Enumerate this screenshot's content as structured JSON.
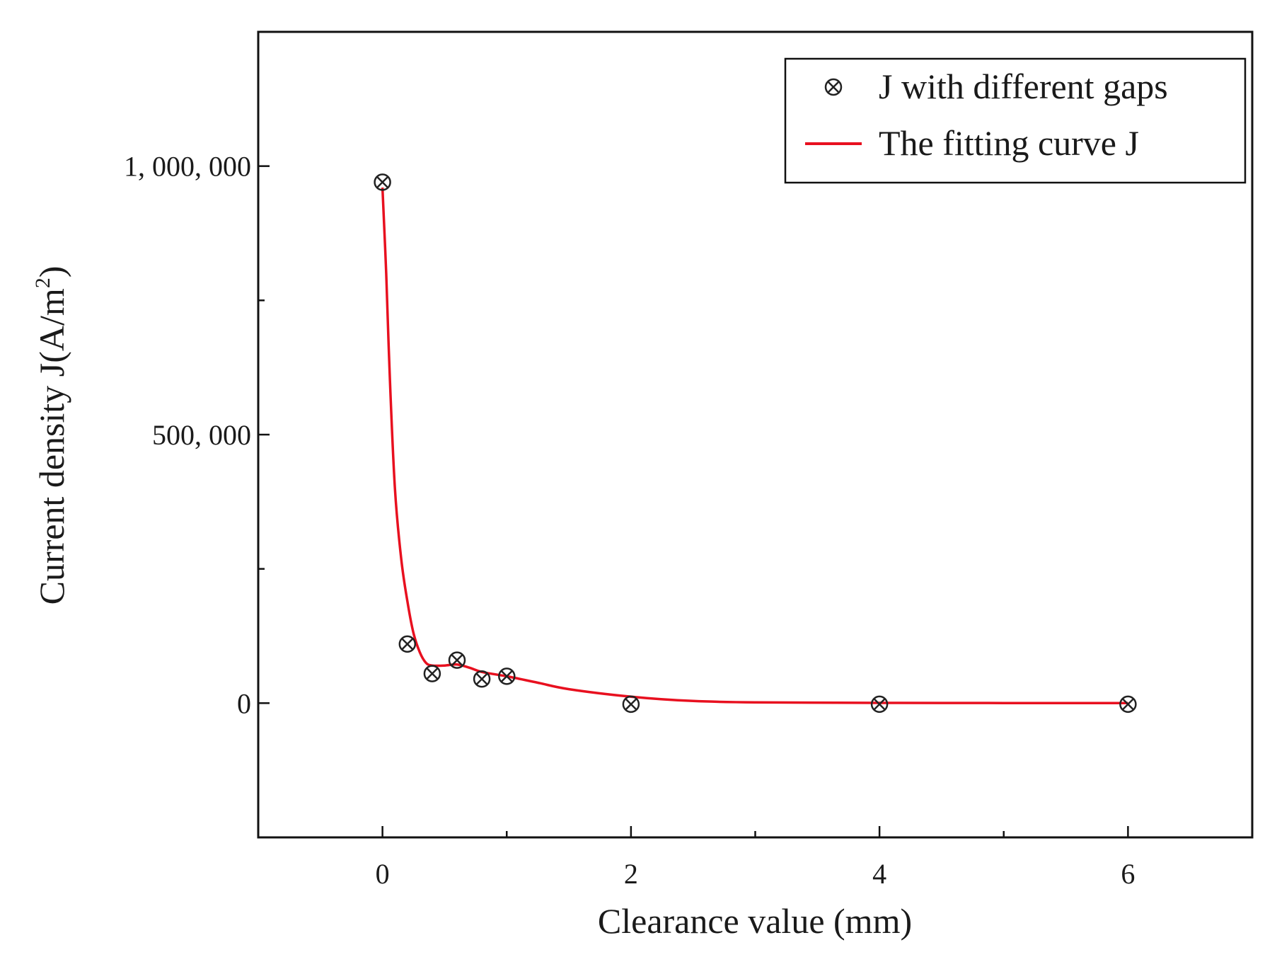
{
  "chart_data": {
    "type": "scatter",
    "title": "",
    "xlabel": "Clearance value (mm)",
    "ylabel_main": "Current density J(A/m",
    "ylabel_sup": "2",
    "ylabel_close": ")",
    "xlim": [
      -1,
      7
    ],
    "ylim": [
      -250000,
      1250000
    ],
    "x_ticks": [
      0,
      2,
      4,
      6
    ],
    "x_tick_labels": [
      "0",
      "2",
      "4",
      "6"
    ],
    "x_minor_ticks": [
      1,
      3,
      5
    ],
    "y_ticks": [
      0,
      500000,
      1000000
    ],
    "y_tick_labels": [
      "0",
      "500, 000",
      "1, 000, 000"
    ],
    "y_minor_ticks": [
      250000,
      750000
    ],
    "series": [
      {
        "name": "J with different gaps",
        "kind": "marker",
        "marker": "circle-x",
        "x": [
          0,
          0.2,
          0.4,
          0.6,
          0.8,
          1.0,
          2,
          4,
          6
        ],
        "y": [
          970000,
          110000,
          55000,
          80000,
          45000,
          50000,
          -2000,
          -2000,
          -2000
        ]
      },
      {
        "name": "The fitting curve J",
        "kind": "line",
        "color": "#e8101f",
        "x": [
          0,
          0.03,
          0.06,
          0.1,
          0.15,
          0.2,
          0.25,
          0.3,
          0.35,
          0.4,
          0.5,
          0.6,
          0.7,
          0.8,
          1.0,
          1.25,
          1.5,
          2.0,
          2.5,
          3.0,
          4.0,
          5.0,
          6.0
        ],
        "y": [
          960000,
          800000,
          600000,
          400000,
          270000,
          190000,
          130000,
          95000,
          75000,
          70000,
          70000,
          72000,
          66000,
          58000,
          50000,
          38000,
          26000,
          12000,
          4000,
          1500,
          500,
          200,
          0
        ]
      }
    ],
    "legend": {
      "position": "top-right"
    }
  }
}
